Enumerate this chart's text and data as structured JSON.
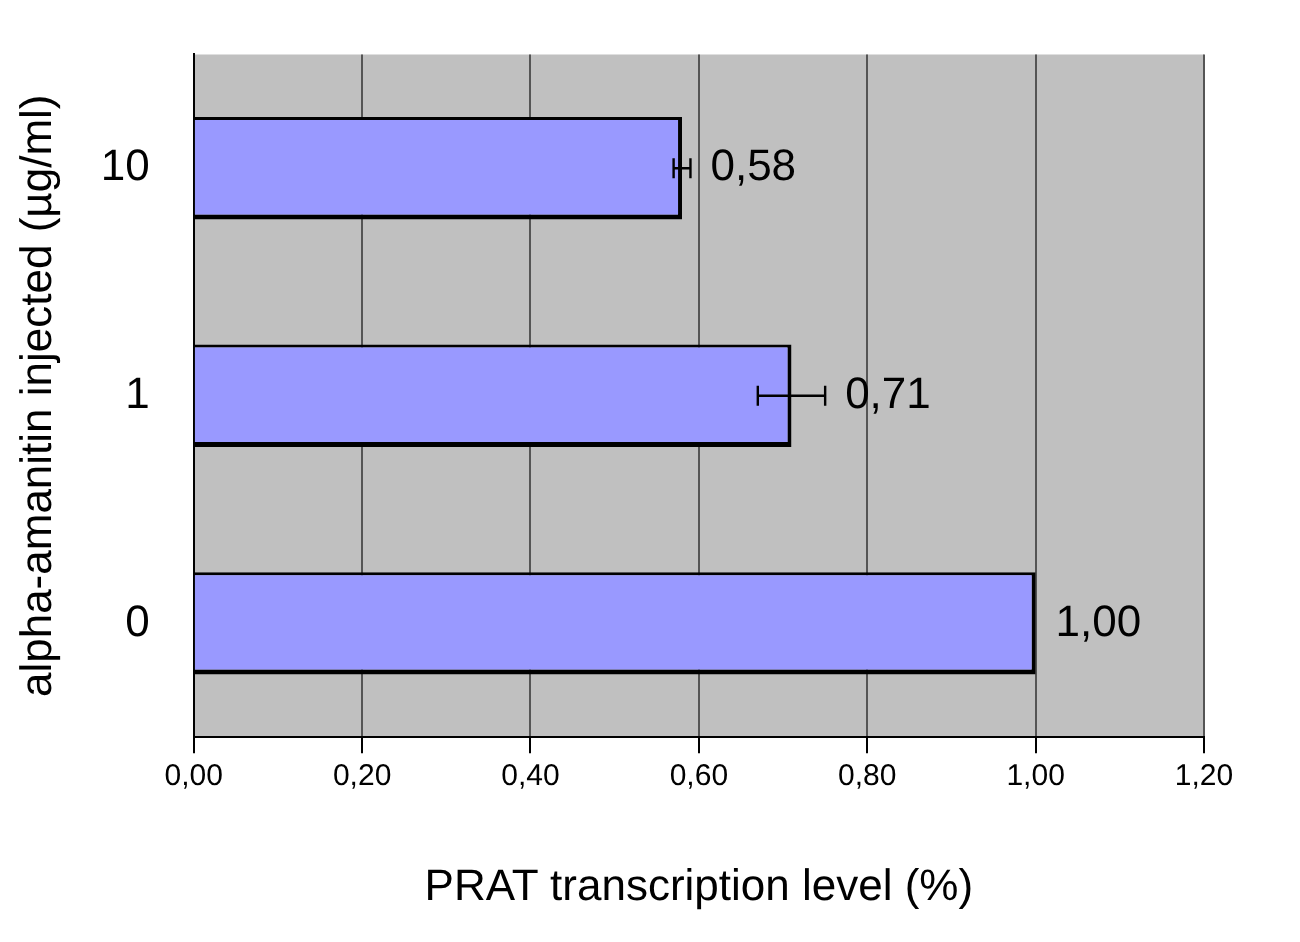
{
  "chart_data": {
    "type": "bar",
    "orientation": "horizontal",
    "xlabel": "PRAT transcription level (%)",
    "ylabel": "alpha-amanitin injected (µg/ml)",
    "categories": [
      "10",
      "1",
      "0"
    ],
    "values": [
      0.58,
      0.71,
      1.0
    ],
    "errors": [
      0.01,
      0.04,
      null
    ],
    "value_labels": [
      "0,58",
      "0,71",
      "1,00"
    ],
    "color": "#9999ff",
    "xlim": [
      0,
      1.2
    ],
    "xticks": [
      {
        "value": 0,
        "label": "0,00"
      },
      {
        "value": 0.2,
        "label": "0,20"
      },
      {
        "value": 0.4,
        "label": "0,40"
      },
      {
        "value": 0.6,
        "label": "0,60"
      },
      {
        "value": 0.8,
        "label": "0,80"
      },
      {
        "value": 1.0,
        "label": "1,00"
      },
      {
        "value": 1.2,
        "label": "1,20"
      }
    ],
    "grid": "x",
    "legend": false
  }
}
